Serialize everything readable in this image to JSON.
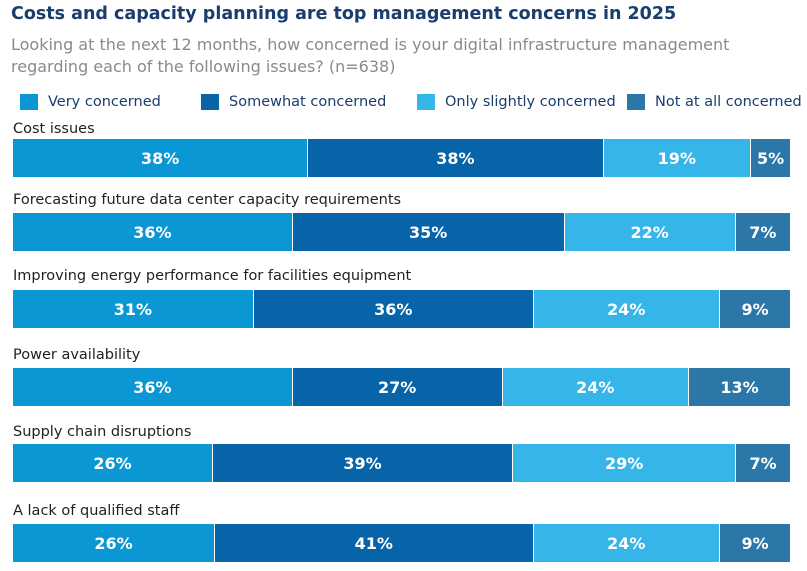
{
  "colors": {
    "very": "#0b97d3",
    "somewhat": "#0764a8",
    "slightly": "#36b6e8",
    "notatall": "#2a77a8"
  },
  "chart_data": {
    "type": "bar",
    "orientation": "horizontal",
    "stacked": true,
    "title": "Costs and capacity planning are top management concerns in 2025",
    "subtitle": "Looking at the next 12 months, how concerned is your digital infrastructure management regarding each of the following issues? (n=638)",
    "categories": [
      "Cost issues",
      "Forecasting future data center capacity requirements",
      "Improving energy performance for facilities equipment",
      "Power availability",
      "Supply chain disruptions",
      "A lack of qualified staff"
    ],
    "series": [
      {
        "name": "Very concerned",
        "key": "very",
        "values": [
          38,
          36,
          31,
          36,
          26,
          26
        ]
      },
      {
        "name": "Somewhat concerned",
        "key": "somewhat",
        "values": [
          38,
          35,
          36,
          27,
          39,
          41
        ]
      },
      {
        "name": "Only slightly concerned",
        "key": "slightly",
        "values": [
          19,
          22,
          24,
          24,
          29,
          24
        ]
      },
      {
        "name": "Not at all concerned",
        "key": "notatall",
        "values": [
          5,
          7,
          9,
          13,
          7,
          9
        ]
      }
    ],
    "unit": "%",
    "legend_position": "top"
  }
}
